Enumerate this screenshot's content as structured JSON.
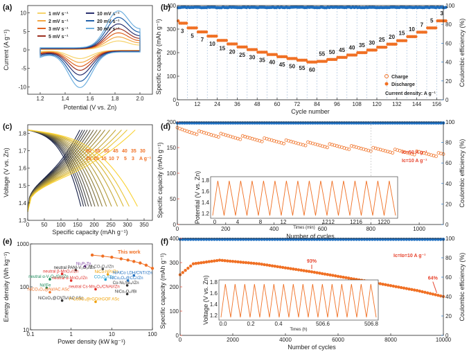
{
  "colors": {
    "orange": "#f07024",
    "blue": "#1f6fc0",
    "red": "#e6402a",
    "bg": "#ffffff"
  },
  "chart_data": [
    {
      "panel": "(a)",
      "type": "line",
      "xlabel": "Potential (V vs. Zn)",
      "ylabel": "Current  (A g⁻¹)",
      "xlim": [
        1.1,
        2.1
      ],
      "ylim": [
        -12,
        12
      ],
      "xticks": [
        "1.2",
        "1.4",
        "1.6",
        "1.8",
        "2.0"
      ],
      "yticks": [
        "-10",
        "-5",
        "0",
        "5",
        "10"
      ],
      "series": [
        {
          "name": "1 mV s⁻¹",
          "color": "#f6d36a",
          "scale": 0.22
        },
        {
          "name": "2 mV s⁻¹",
          "color": "#f4a742",
          "scale": 0.32
        },
        {
          "name": "3 mV s⁻¹",
          "color": "#e0621f",
          "scale": 0.42
        },
        {
          "name": "5 mV s⁻¹",
          "color": "#9c2f1f",
          "scale": 0.52
        },
        {
          "name": "10 mV s⁻¹",
          "color": "#2a2f6e",
          "scale": 0.64
        },
        {
          "name": "20 mV s⁻¹",
          "color": "#1f5fa8",
          "scale": 0.8
        },
        {
          "name": "30 mV s⁻¹",
          "color": "#6fb0e0",
          "scale": 0.96
        }
      ]
    },
    {
      "panel": "(b)",
      "type": "scatter",
      "xlabel": "Cycle number",
      "ylabel": "Specific capacity (mAh g⁻¹)",
      "y2label": "Coulombic efficiency (%)",
      "xlim": [
        0,
        160
      ],
      "ylim": [
        0,
        400
      ],
      "y2lim": [
        0,
        100
      ],
      "xticks": [
        "0",
        "12",
        "24",
        "36",
        "48",
        "60",
        "72",
        "84",
        "96",
        "108",
        "120",
        "132",
        "144",
        "156"
      ],
      "yticks": [
        "0",
        "100",
        "200",
        "300",
        "400"
      ],
      "y2ticks": [
        "0",
        "20",
        "40",
        "60",
        "80",
        "100"
      ],
      "rates": [
        "3",
        "5",
        "7",
        "10",
        "15",
        "20",
        "25",
        "30",
        "35",
        "40",
        "45",
        "50",
        "55",
        "60",
        "55",
        "50",
        "45",
        "40",
        "35",
        "30",
        "25",
        "20",
        "15",
        "10",
        "7",
        "5",
        "3"
      ],
      "capacity": [
        325,
        305,
        288,
        270,
        252,
        237,
        224,
        213,
        202,
        192,
        183,
        175,
        168,
        160,
        163,
        171,
        180,
        190,
        200,
        211,
        223,
        236,
        251,
        268,
        287,
        305,
        335
      ],
      "efficiency": 98,
      "legend": [
        "Charge",
        "Discharge"
      ],
      "note": "Current density: A g⁻¹"
    },
    {
      "panel": "(c)",
      "type": "line",
      "xlabel": "Specific capacity (mAh g⁻¹)",
      "ylabel": "Voltage (V vs. Zn)",
      "xlim": [
        0,
        375
      ],
      "ylim": [
        1.3,
        1.85
      ],
      "xticks": [
        "0",
        "50",
        "100",
        "150",
        "200",
        "250",
        "300",
        "350"
      ],
      "yticks": [
        "1.3",
        "1.4",
        "1.5",
        "1.6",
        "1.7",
        "1.8"
      ],
      "rates_row1": [
        "60",
        "55",
        "50",
        "45",
        "40",
        "35",
        "30"
      ],
      "rates_row2": [
        "25",
        "20",
        "15",
        "10",
        "7",
        "5",
        "3",
        "A g⁻¹"
      ],
      "capacities": [
        160,
        168,
        175,
        183,
        192,
        202,
        213,
        224,
        237,
        252,
        270,
        288,
        305,
        330
      ]
    },
    {
      "panel": "(d)",
      "type": "scatter",
      "xlabel": "Number of cycles",
      "ylabel": "Specific capacity (mAh g⁻¹)",
      "y2label": "Coulombic efficiency (%)",
      "xlim": [
        0,
        1100
      ],
      "ylim": [
        0,
        200
      ],
      "y2lim": [
        0,
        100
      ],
      "xticks": [
        "0",
        "200",
        "400",
        "600",
        "800",
        "1000"
      ],
      "yticks": [
        "0",
        "50",
        "100",
        "150",
        "200"
      ],
      "y2ticks": [
        "0",
        "20",
        "40",
        "60",
        "80",
        "100"
      ],
      "start_capacity": 185,
      "end_capacity": 135,
      "efficiency": 99,
      "label1": "Iᴄ=50 A g⁻¹",
      "label2": "Iᴄ=10 A g⁻¹",
      "inset": {
        "ylabel": "Potential (V vs. Zn)",
        "xlabel": "Times (min)",
        "xticks": [
          "0",
          "4",
          "8",
          "12",
          "1212",
          "1216",
          "1220"
        ],
        "yticks": [
          "1.2",
          "1.4",
          "1.6",
          "1.8"
        ]
      }
    },
    {
      "panel": "(e)",
      "type": "scatter",
      "xlabel": "Power density (kW kg⁻¹)",
      "ylabel": "Energy density (Wh kg⁻¹)",
      "xticks": [
        "0.1",
        "1",
        "10",
        "100"
      ],
      "yticks": [
        "10",
        "100",
        "1000"
      ],
      "this_work_label": "This work",
      "this_work": [
        [
          3.3,
          550
        ],
        [
          6,
          520
        ],
        [
          10,
          490
        ],
        [
          17,
          450
        ],
        [
          25,
          420
        ],
        [
          35,
          390
        ],
        [
          50,
          360
        ],
        [
          70,
          320
        ],
        [
          100,
          270
        ]
      ],
      "references": [
        {
          "name": "Ni₃P₂Zn",
          "pt": [
            2.2,
            300
          ]
        },
        {
          "name": "neutral PANI-V₂O₅//Zn",
          "pt": [
            1.3,
            245
          ]
        },
        {
          "name": "M-CO₃O₄//Zn",
          "pt": [
            6,
            260
          ]
        },
        {
          "name": "neutral β-MnO₂//Zn",
          "pt": [
            0.6,
            200
          ]
        },
        {
          "name": "NiCo-NP//Zn",
          "pt": [
            8,
            195
          ]
        },
        {
          "name": "NiAlCo LDH/CNT//Zn",
          "pt": [
            35,
            185
          ]
        },
        {
          "name": "neutral α-V₂O₅/Gr//Zn",
          "pt": [
            0.3,
            150
          ]
        },
        {
          "name": "neutral α-MnO₂//Zn",
          "pt": [
            1.0,
            140
          ]
        },
        {
          "name": "CO₃O₄//Zn",
          "pt": [
            7,
            148
          ]
        },
        {
          "name": "NiCo₂O₄@CC//Zn",
          "pt": [
            25,
            140
          ]
        },
        {
          "name": "Co-Ni₅Se₄//Zn",
          "pt": [
            24,
            108
          ]
        },
        {
          "name": "Ni//Fe",
          "pt": [
            0.25,
            95
          ]
        },
        {
          "name": "NiCO₃O₄@Ni//AC ASc",
          "pt": [
            0.3,
            75
          ]
        },
        {
          "name": "neutral Cs-Mn₂O₄/CNAI//Zn",
          "pt": [
            4,
            88
          ]
        },
        {
          "name": "NiCo₂O₄//Bi",
          "pt": [
            24,
            68
          ]
        },
        {
          "name": "NiCoO₃@CNTs//AC ASc",
          "pt": [
            0.6,
            48
          ]
        },
        {
          "name": "F-CoSO₄@rGO//rGOF ASc",
          "pt": [
            4,
            45
          ]
        }
      ]
    },
    {
      "panel": "(f)",
      "type": "scatter",
      "xlabel": "Number of cycles",
      "ylabel": "Specific capacity (mAh g⁻¹)",
      "y2label": "Coulombic efficiency (%)",
      "xlim": [
        0,
        10000
      ],
      "ylim": [
        0,
        400
      ],
      "y2lim": [
        0,
        100
      ],
      "xticks": [
        "0",
        "2000",
        "4000",
        "6000",
        "8000",
        "10000"
      ],
      "yticks": [
        "0",
        "100",
        "200",
        "300",
        "400"
      ],
      "y2ticks": [
        "0",
        "20",
        "40",
        "60",
        "80",
        "100"
      ],
      "capacity": [
        [
          0,
          250
        ],
        [
          500,
          295
        ],
        [
          1500,
          310
        ],
        [
          3000,
          295
        ],
        [
          5000,
          262
        ],
        [
          7000,
          225
        ],
        [
          9000,
          185
        ],
        [
          10000,
          160
        ]
      ],
      "efficiency": 99,
      "label": "Iᴄ=Iᴅ=10 A g⁻¹",
      "annotations": [
        "93%",
        "64%"
      ],
      "inset": {
        "ylabel": "Voltage (V vs. Zn)",
        "xlabel": "Times (h)",
        "xticks": [
          "0.0",
          "0.2",
          "0.4",
          "506.6",
          "506.8"
        ],
        "yticks": [
          "1.2",
          "1.4",
          "1.6",
          "1.8"
        ]
      }
    }
  ]
}
